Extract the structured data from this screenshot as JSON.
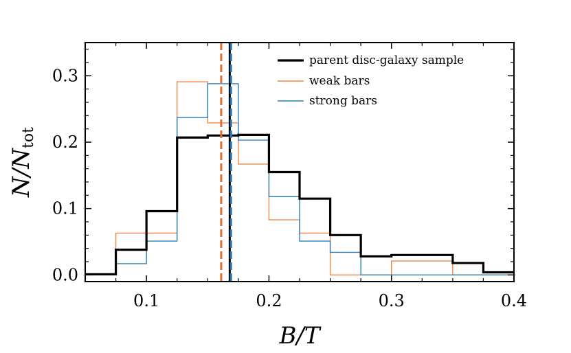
{
  "chart_data": {
    "type": "histogram-step",
    "xlabel": "B/T",
    "ylabel_main": "N/N",
    "ylabel_sub": "tot",
    "xlim": [
      0.05,
      0.4
    ],
    "ylim": [
      -0.01,
      0.35
    ],
    "xticks": [
      0.1,
      0.2,
      0.3,
      0.4
    ],
    "xtick_labels": [
      "0.1",
      "0.2",
      "0.3",
      "0.4"
    ],
    "yticks": [
      0.0,
      0.1,
      0.2,
      0.3
    ],
    "ytick_labels": [
      "0.0",
      "0.1",
      "0.2",
      "0.3"
    ],
    "bin_edges": [
      0.05,
      0.075,
      0.1,
      0.125,
      0.15,
      0.175,
      0.2,
      0.225,
      0.25,
      0.275,
      0.3,
      0.325,
      0.35,
      0.375,
      0.4
    ],
    "legend_position": "top-right",
    "series": [
      {
        "name": "parent disc-galaxy sample",
        "color": "#000000",
        "width": 3.2,
        "values": [
          0.001,
          0.038,
          0.096,
          0.207,
          0.21,
          0.211,
          0.155,
          0.115,
          0.06,
          0.028,
          0.03,
          0.03,
          0.018,
          0.004
        ]
      },
      {
        "name": "weak bars",
        "color": "#ee8544",
        "width": 1.4,
        "values": [
          0.0,
          0.063,
          0.063,
          0.291,
          0.229,
          0.167,
          0.083,
          0.063,
          0.0,
          0.0,
          0.021,
          0.021,
          0.0,
          0.0
        ]
      },
      {
        "name": "strong bars",
        "color": "#2c7fb8",
        "width": 1.4,
        "values": [
          0.0,
          0.017,
          0.051,
          0.237,
          0.288,
          0.203,
          0.118,
          0.051,
          0.034,
          0.0,
          0.0,
          0.0,
          0.0,
          0.0
        ]
      }
    ],
    "median_lines": [
      {
        "series": "parent disc-galaxy sample",
        "x": 0.168,
        "color": "#000000",
        "style": "solid"
      },
      {
        "series": "weak bars",
        "x": 0.161,
        "color": "#e07030",
        "style": "dashed"
      },
      {
        "series": "strong bars",
        "x": 0.169,
        "color": "#1f77b4",
        "style": "dashed"
      }
    ]
  }
}
